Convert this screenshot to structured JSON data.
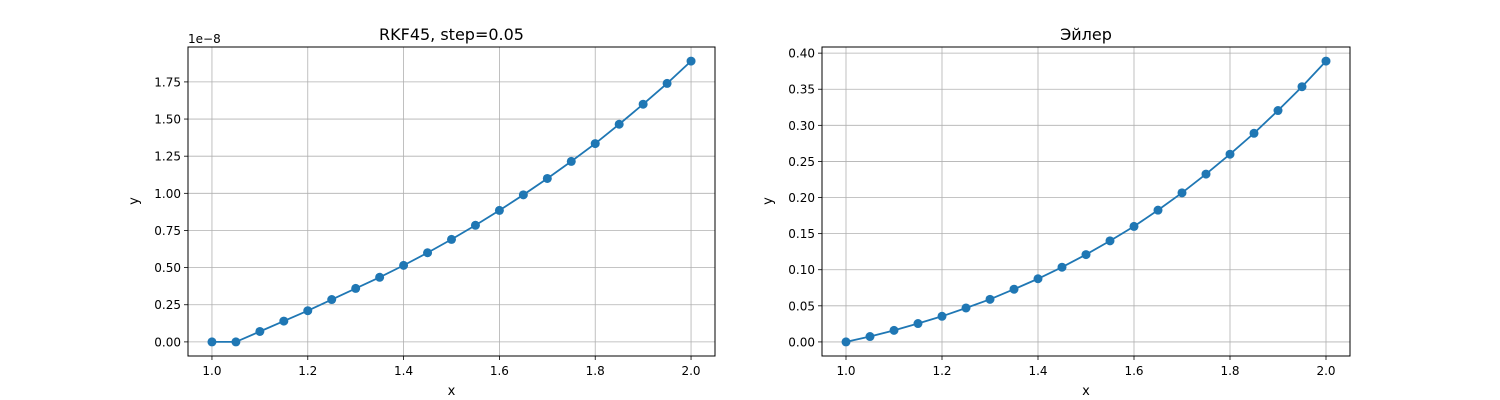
{
  "chart_data": [
    {
      "type": "line",
      "title": "RKF45, step=0.05",
      "xlabel": "x",
      "ylabel": "y",
      "offset_text": "1e−8",
      "x": [
        1.0,
        1.05,
        1.1,
        1.15,
        1.2,
        1.25,
        1.3,
        1.35,
        1.4,
        1.45,
        1.5,
        1.55,
        1.6,
        1.65,
        1.7,
        1.75,
        1.8,
        1.85,
        1.9,
        1.95,
        2.0
      ],
      "series": [
        {
          "values": [
            0.0,
            0.0,
            0.07,
            0.14,
            0.21,
            0.285,
            0.36,
            0.435,
            0.515,
            0.6,
            0.69,
            0.785,
            0.885,
            0.99,
            1.1,
            1.215,
            1.335,
            1.465,
            1.6,
            1.74,
            1.89
          ]
        }
      ],
      "xlim": [
        0.95,
        2.05
      ],
      "ylim": [
        -0.095,
        1.985
      ],
      "xticks": [
        1.0,
        1.2,
        1.4,
        1.6,
        1.8,
        2.0
      ],
      "xtick_labels": [
        "1.0",
        "1.2",
        "1.4",
        "1.6",
        "1.8",
        "2.0"
      ],
      "yticks": [
        0.0,
        0.25,
        0.5,
        0.75,
        1.0,
        1.25,
        1.5,
        1.75
      ],
      "ytick_labels": [
        "0.00",
        "0.25",
        "0.50",
        "0.75",
        "1.00",
        "1.25",
        "1.50",
        "1.75"
      ],
      "grid": true,
      "marker": "circle",
      "color": "#1f77b4"
    },
    {
      "type": "line",
      "title": "Эйлер",
      "xlabel": "x",
      "ylabel": "y",
      "x": [
        1.0,
        1.05,
        1.1,
        1.15,
        1.2,
        1.25,
        1.3,
        1.35,
        1.4,
        1.45,
        1.5,
        1.55,
        1.6,
        1.65,
        1.7,
        1.75,
        1.8,
        1.85,
        1.9,
        1.95,
        2.0
      ],
      "series": [
        {
          "values": [
            0.0,
            0.0075,
            0.016,
            0.0255,
            0.0355,
            0.047,
            0.059,
            0.073,
            0.0875,
            0.1035,
            0.121,
            0.14,
            0.16,
            0.1825,
            0.2065,
            0.2325,
            0.26,
            0.289,
            0.3205,
            0.3535,
            0.389
          ]
        }
      ],
      "xlim": [
        0.95,
        2.05
      ],
      "ylim": [
        -0.0195,
        0.4085
      ],
      "xticks": [
        1.0,
        1.2,
        1.4,
        1.6,
        1.8,
        2.0
      ],
      "xtick_labels": [
        "1.0",
        "1.2",
        "1.4",
        "1.6",
        "1.8",
        "2.0"
      ],
      "yticks": [
        0.0,
        0.05,
        0.1,
        0.15,
        0.2,
        0.25,
        0.3,
        0.35,
        0.4
      ],
      "ytick_labels": [
        "0.00",
        "0.05",
        "0.10",
        "0.15",
        "0.20",
        "0.25",
        "0.30",
        "0.35",
        "0.40"
      ],
      "grid": true,
      "marker": "circle",
      "color": "#1f77b4"
    }
  ]
}
